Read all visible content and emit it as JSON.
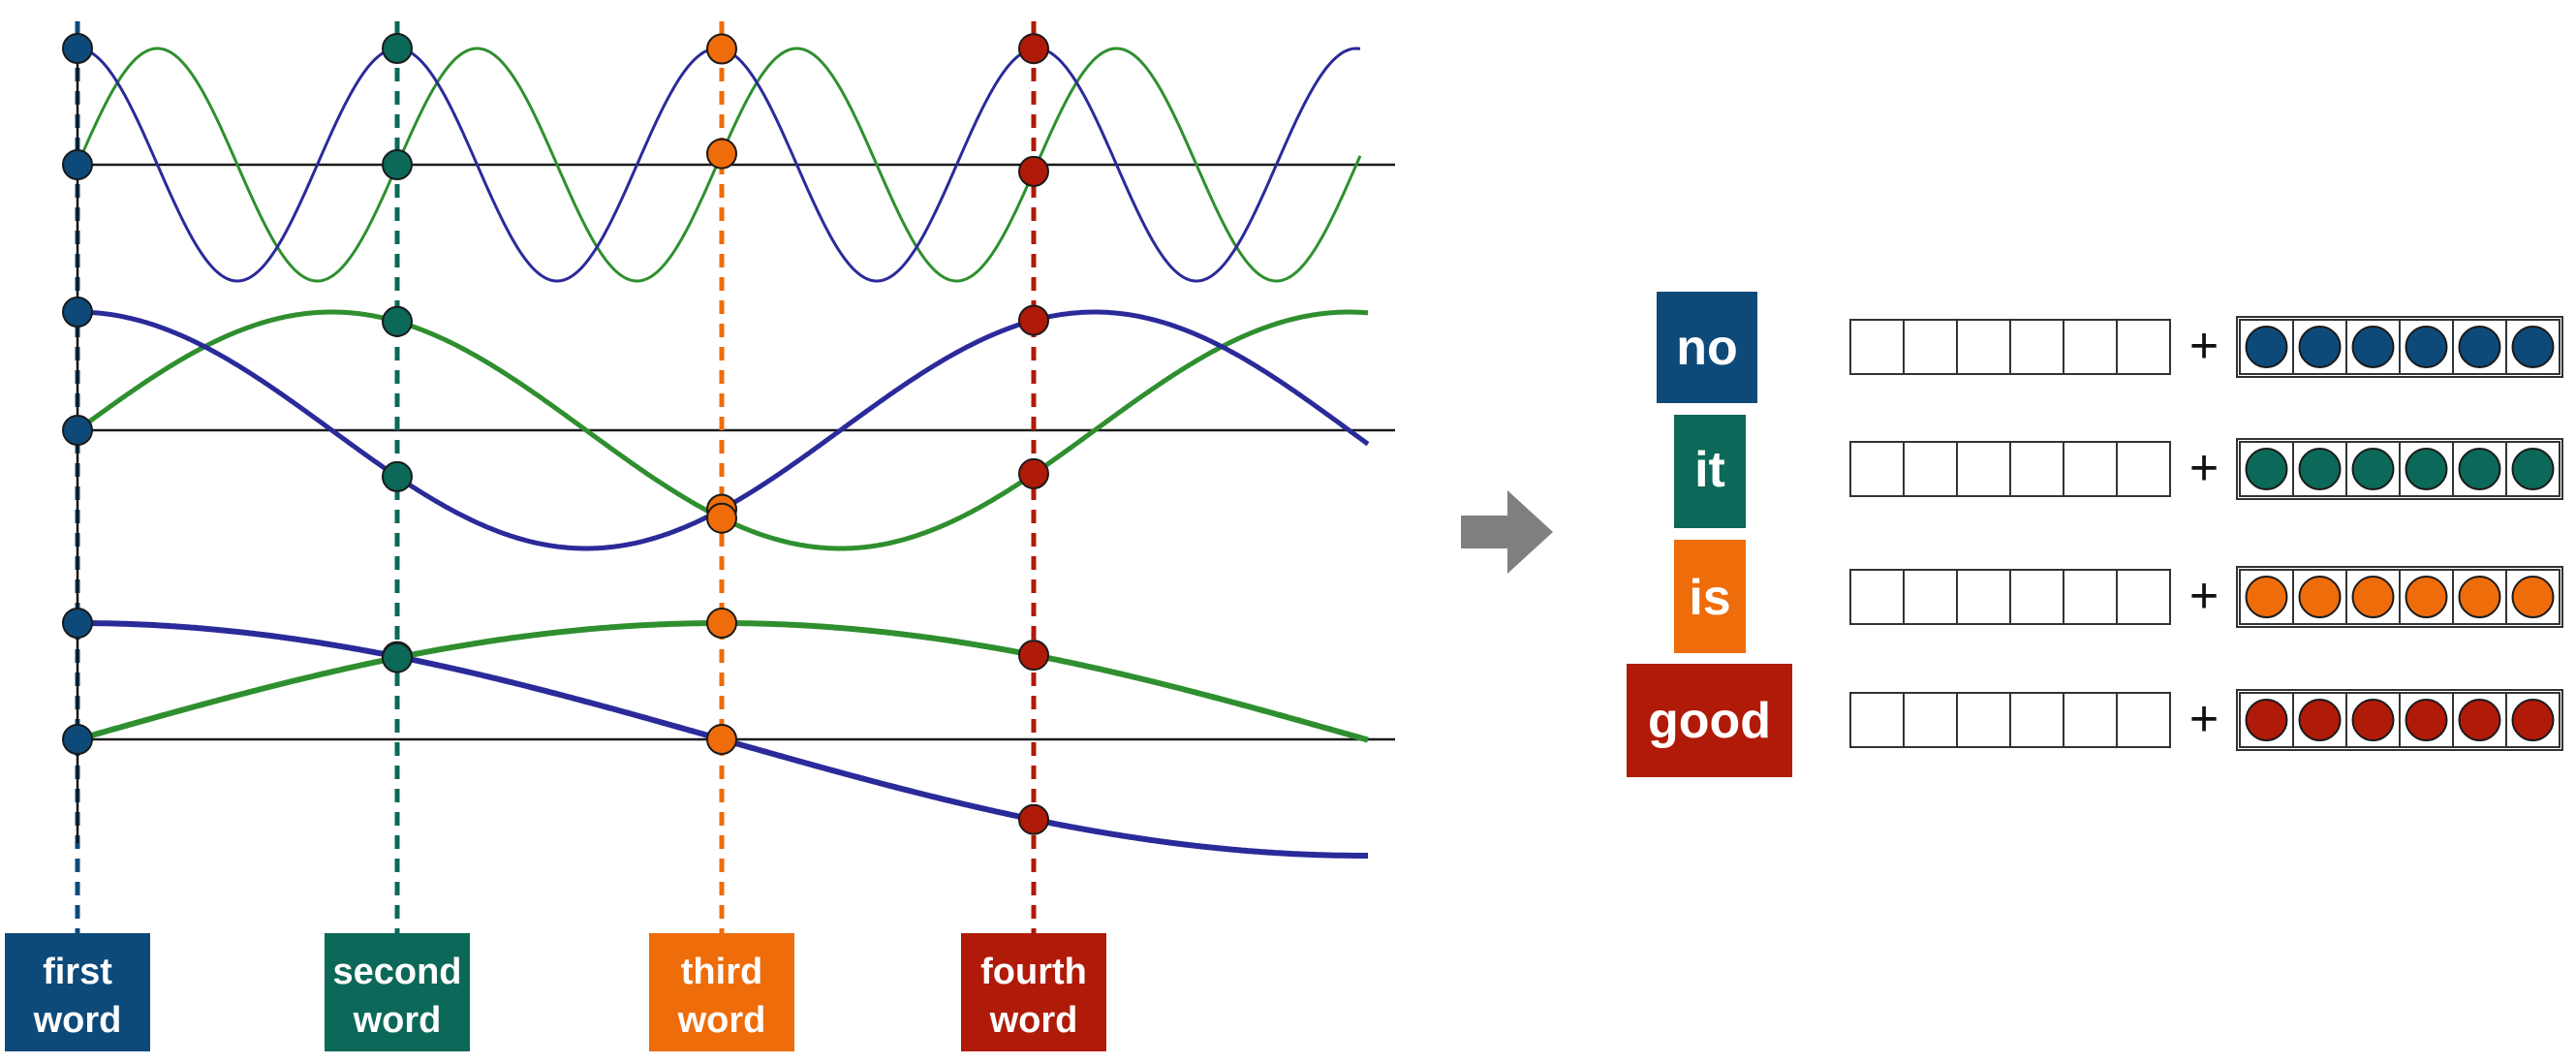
{
  "colors": {
    "blue_wave": "#2b2a9a",
    "green_wave": "#2f8f2f",
    "axis": "#1a1a1a",
    "arrow": "#7f7f7f",
    "word1": "#0d4a7a",
    "word2": "#0c6858",
    "word3": "#ee6c0a",
    "word4": "#b01a08"
  },
  "positions": [
    {
      "line1": "first",
      "line2": "word",
      "color_key": "word1"
    },
    {
      "line1": "second",
      "line2": "word",
      "color_key": "word2"
    },
    {
      "line1": "third",
      "line2": "word",
      "color_key": "word3"
    },
    {
      "line1": "fourth",
      "line2": "word",
      "color_key": "word4"
    }
  ],
  "tokens": [
    {
      "word": "no",
      "color_key": "word1"
    },
    {
      "word": "it",
      "color_key": "word2"
    },
    {
      "word": "is",
      "color_key": "word3"
    },
    {
      "word": "good",
      "color_key": "word4"
    }
  ],
  "plus_sign": "+",
  "embedding_size": 6
}
